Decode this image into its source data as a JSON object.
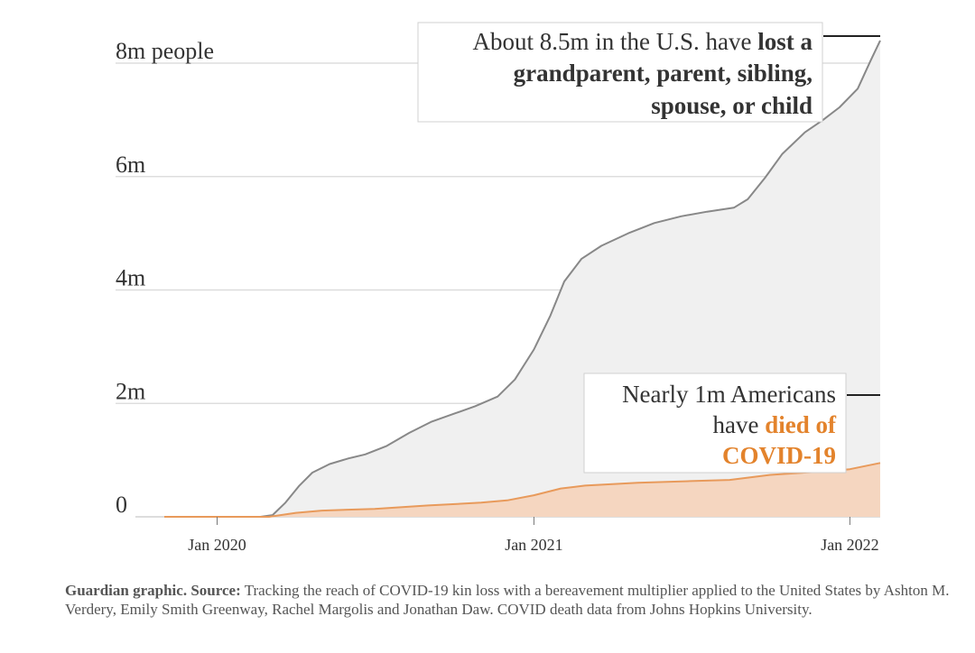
{
  "chart_data": {
    "type": "area",
    "x_ticks": [
      "Jan 2020",
      "Jan 2021",
      "Jan 2022"
    ],
    "y_ticks": [
      "0",
      "2m",
      "4m",
      "6m",
      "8m people"
    ],
    "y_tick_values": [
      0,
      2,
      4,
      6,
      8
    ],
    "ylim": [
      0,
      8.5
    ],
    "grid": true,
    "series": [
      {
        "color": "#888888",
        "fill": "#f0f0f0",
        "points": [
          [
            "2019-11-01",
            0
          ],
          [
            "2020-02-20",
            0
          ],
          [
            "2020-03-05",
            0.03
          ],
          [
            "2020-03-20",
            0.25
          ],
          [
            "2020-04-05",
            0.55
          ],
          [
            "2020-04-20",
            0.78
          ],
          [
            "2020-05-10",
            0.93
          ],
          [
            "2020-06-01",
            1.03
          ],
          [
            "2020-06-20",
            1.1
          ],
          [
            "2020-07-15",
            1.25
          ],
          [
            "2020-08-10",
            1.48
          ],
          [
            "2020-09-05",
            1.68
          ],
          [
            "2020-10-01",
            1.82
          ],
          [
            "2020-10-25",
            1.95
          ],
          [
            "2020-11-20",
            2.12
          ],
          [
            "2020-12-10",
            2.42
          ],
          [
            "2021-01-01",
            2.95
          ],
          [
            "2021-01-20",
            3.55
          ],
          [
            "2021-02-05",
            4.15
          ],
          [
            "2021-02-25",
            4.55
          ],
          [
            "2021-03-20",
            4.78
          ],
          [
            "2021-04-20",
            5.0
          ],
          [
            "2021-05-20",
            5.18
          ],
          [
            "2021-06-20",
            5.3
          ],
          [
            "2021-07-20",
            5.38
          ],
          [
            "2021-08-20",
            5.45
          ],
          [
            "2021-09-05",
            5.6
          ],
          [
            "2021-09-25",
            5.98
          ],
          [
            "2021-10-15",
            6.4
          ],
          [
            "2021-11-10",
            6.78
          ],
          [
            "2021-12-01",
            7.0
          ],
          [
            "2021-12-20",
            7.22
          ],
          [
            "2022-01-10",
            7.55
          ],
          [
            "2022-01-25",
            8.05
          ],
          [
            "2022-02-05",
            8.4
          ]
        ]
      },
      {
        "color": "#e89a5b",
        "fill": "#f5d6c0",
        "points": [
          [
            "2019-11-01",
            0
          ],
          [
            "2020-03-01",
            0
          ],
          [
            "2020-04-01",
            0.07
          ],
          [
            "2020-05-01",
            0.11
          ],
          [
            "2020-07-01",
            0.14
          ],
          [
            "2020-09-01",
            0.2
          ],
          [
            "2020-11-01",
            0.25
          ],
          [
            "2020-12-01",
            0.29
          ],
          [
            "2021-01-01",
            0.38
          ],
          [
            "2021-02-01",
            0.5
          ],
          [
            "2021-03-01",
            0.55
          ],
          [
            "2021-05-01",
            0.6
          ],
          [
            "2021-07-01",
            0.63
          ],
          [
            "2021-08-15",
            0.65
          ],
          [
            "2021-10-01",
            0.74
          ],
          [
            "2021-12-01",
            0.8
          ],
          [
            "2022-01-01",
            0.84
          ],
          [
            "2022-02-05",
            0.95
          ]
        ]
      }
    ],
    "annotations": {
      "top": {
        "line1_regular": "About 8.5m in the U.S. have ",
        "line1_bold": "lost a",
        "line2_bold": "grandparent, parent, sibling,",
        "line3_bold": "spouse, or child"
      },
      "bottom": {
        "line1": "Nearly 1m Americans",
        "line2_regular": "have ",
        "line2_orange": "died of",
        "line3_orange": "COVID-19"
      }
    }
  },
  "caption": {
    "bold": "Guardian graphic. Source:",
    "text": "Tracking the reach of COVID-19 kin loss with a bereavement multiplier applied to the United States by Ashton M. Verdery, Emily Smith Greenway, Rachel Margolis and Jonathan Daw. COVID death data from Johns Hopkins University."
  }
}
